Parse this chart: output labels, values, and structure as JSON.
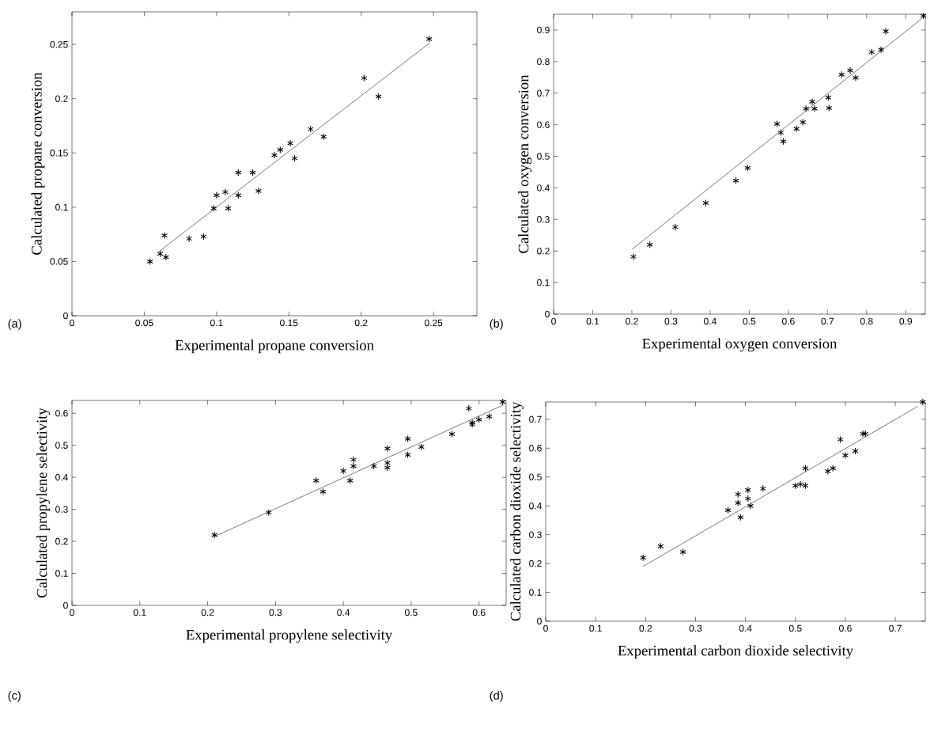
{
  "chart_data": [
    {
      "type": "scatter",
      "xlabel": "Experimental propane conversion",
      "ylabel": "Calculated propane conversion",
      "annotations": [
        "(a)"
      ],
      "xlim": [
        0,
        0.28
      ],
      "ylim": [
        0,
        0.28
      ],
      "xticks": [
        0,
        0.05,
        0.1,
        0.15,
        0.2,
        0.25
      ],
      "yticks": [
        0,
        0.05,
        0.1,
        0.15,
        0.2,
        0.25
      ],
      "series": [
        {
          "marker": "cross",
          "color": "#000000",
          "x": [
            0.054,
            0.061,
            0.064,
            0.065,
            0.081,
            0.091,
            0.098,
            0.1,
            0.106,
            0.108,
            0.115,
            0.115,
            0.125,
            0.129,
            0.14,
            0.144,
            0.151,
            0.154,
            0.165,
            0.174,
            0.202,
            0.212,
            0.247
          ],
          "values": [
            0.05,
            0.057,
            0.074,
            0.054,
            0.071,
            0.073,
            0.099,
            0.111,
            0.114,
            0.099,
            0.111,
            0.132,
            0.132,
            0.115,
            0.148,
            0.153,
            0.159,
            0.145,
            0.172,
            0.165,
            0.219,
            0.202,
            0.255
          ]
        },
        {
          "type": "line",
          "color": "#000000",
          "x": [
            0.06,
            0.247
          ],
          "values": [
            0.059,
            0.251
          ]
        }
      ]
    },
    {
      "type": "scatter",
      "xlabel": "Experimental oxygen conversion",
      "ylabel": "Calculated oxygen conversion",
      "annotations": [
        "(b)"
      ],
      "xlim": [
        0,
        0.95
      ],
      "ylim": [
        0,
        0.95
      ],
      "xticks": [
        0,
        0.1,
        0.2,
        0.3,
        0.4,
        0.5,
        0.6,
        0.7,
        0.8,
        0.9
      ],
      "yticks": [
        0,
        0.1,
        0.2,
        0.3,
        0.4,
        0.5,
        0.6,
        0.7,
        0.8,
        0.9
      ],
      "series": [
        {
          "marker": "cross",
          "color": "#000000",
          "x": [
            0.204,
            0.246,
            0.311,
            0.389,
            0.466,
            0.496,
            0.571,
            0.581,
            0.587,
            0.621,
            0.637,
            0.645,
            0.661,
            0.667,
            0.702,
            0.704,
            0.736,
            0.758,
            0.772,
            0.813,
            0.837,
            0.849,
            0.945
          ],
          "values": [
            0.182,
            0.22,
            0.276,
            0.352,
            0.423,
            0.463,
            0.603,
            0.575,
            0.547,
            0.587,
            0.608,
            0.651,
            0.673,
            0.651,
            0.686,
            0.653,
            0.759,
            0.772,
            0.749,
            0.83,
            0.838,
            0.896,
            0.945
          ]
        },
        {
          "type": "line",
          "color": "#000000",
          "x": [
            0.2,
            0.95
          ],
          "values": [
            0.205,
            0.945
          ]
        }
      ]
    },
    {
      "type": "scatter",
      "xlabel": "Experimental propylene selectivity",
      "ylabel": "Calculated propylene selectivity",
      "annotations": [
        "(c)"
      ],
      "xlim": [
        0,
        0.64
      ],
      "ylim": [
        0,
        0.64
      ],
      "xticks": [
        0,
        0.1,
        0.2,
        0.3,
        0.4,
        0.5,
        0.6
      ],
      "yticks": [
        0,
        0.1,
        0.2,
        0.3,
        0.4,
        0.5,
        0.6
      ],
      "series": [
        {
          "marker": "cross",
          "color": "#000000",
          "x": [
            0.21,
            0.29,
            0.36,
            0.37,
            0.4,
            0.41,
            0.415,
            0.415,
            0.445,
            0.465,
            0.465,
            0.465,
            0.495,
            0.495,
            0.515,
            0.56,
            0.585,
            0.59,
            0.59,
            0.6,
            0.615,
            0.635
          ],
          "values": [
            0.22,
            0.29,
            0.39,
            0.355,
            0.42,
            0.39,
            0.435,
            0.455,
            0.435,
            0.43,
            0.445,
            0.49,
            0.52,
            0.47,
            0.495,
            0.535,
            0.615,
            0.565,
            0.57,
            0.58,
            0.59,
            0.635
          ]
        },
        {
          "type": "line",
          "color": "#000000",
          "x": [
            0.21,
            0.635
          ],
          "values": [
            0.215,
            0.625
          ]
        }
      ]
    },
    {
      "type": "scatter",
      "xlabel": "Experimental carbon dioxide selectivity",
      "ylabel": "Calculated carbon dioxide selectivity",
      "annotations": [
        "(d)"
      ],
      "xlim": [
        0,
        0.76
      ],
      "ylim": [
        0,
        0.76
      ],
      "xticks": [
        0,
        0.1,
        0.2,
        0.3,
        0.4,
        0.5,
        0.6,
        0.7
      ],
      "yticks": [
        0,
        0.1,
        0.2,
        0.3,
        0.4,
        0.5,
        0.6,
        0.7
      ],
      "series": [
        {
          "marker": "cross",
          "color": "#000000",
          "x": [
            0.195,
            0.23,
            0.275,
            0.365,
            0.385,
            0.385,
            0.39,
            0.405,
            0.405,
            0.41,
            0.435,
            0.5,
            0.51,
            0.52,
            0.52,
            0.565,
            0.575,
            0.59,
            0.6,
            0.62,
            0.635,
            0.64,
            0.755
          ],
          "values": [
            0.22,
            0.26,
            0.24,
            0.385,
            0.41,
            0.44,
            0.36,
            0.455,
            0.425,
            0.4,
            0.46,
            0.47,
            0.475,
            0.47,
            0.53,
            0.52,
            0.53,
            0.63,
            0.575,
            0.59,
            0.65,
            0.65,
            0.76
          ]
        },
        {
          "type": "line",
          "color": "#000000",
          "x": [
            0.195,
            0.745
          ],
          "values": [
            0.19,
            0.745
          ]
        }
      ]
    }
  ]
}
